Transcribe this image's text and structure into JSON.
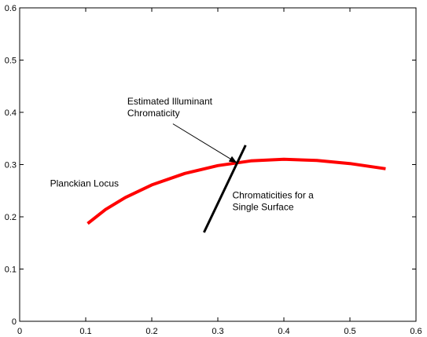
{
  "chart_data": {
    "type": "line",
    "title": "",
    "xlabel": "",
    "ylabel": "",
    "xlim": [
      0,
      0.6
    ],
    "ylim": [
      0,
      0.6
    ],
    "grid": false,
    "x_ticks": [
      0,
      0.1,
      0.2,
      0.3,
      0.4,
      0.5,
      0.6
    ],
    "y_ticks": [
      0,
      0.1,
      0.2,
      0.3,
      0.4,
      0.5,
      0.6
    ],
    "x_tick_labels": [
      "0",
      "0.1",
      "0.2",
      "0.3",
      "0.4",
      "0.5",
      "0.6"
    ],
    "y_tick_labels": [
      "0",
      "0.1",
      "0.2",
      "0.3",
      "0.4",
      "0.5",
      "0.6"
    ],
    "series": [
      {
        "name": "Planckian Locus",
        "color": "#ff0000",
        "x": [
          0.103,
          0.13,
          0.16,
          0.2,
          0.25,
          0.3,
          0.35,
          0.4,
          0.45,
          0.5,
          0.554
        ],
        "y": [
          0.187,
          0.214,
          0.237,
          0.261,
          0.283,
          0.298,
          0.307,
          0.31,
          0.308,
          0.302,
          0.292
        ]
      },
      {
        "name": "Chromaticities for a Single Surface",
        "color": "#000000",
        "x": [
          0.279,
          0.342
        ],
        "y": [
          0.17,
          0.337
        ]
      }
    ],
    "annotations": [
      {
        "id": "planckian",
        "lines": [
          "Planckian Locus"
        ],
        "x": 0.046,
        "y": 0.258
      },
      {
        "id": "surface",
        "lines": [
          "Chromaticities for a",
          "Single Surface"
        ],
        "x": 0.322,
        "y": 0.235
      },
      {
        "id": "illuminant",
        "lines": [
          "Estimated Illuminant",
          "Chromaticity"
        ],
        "x": 0.163,
        "y": 0.415,
        "arrow_from": [
          0.232,
          0.378
        ],
        "arrow_to": [
          0.328,
          0.304
        ]
      }
    ]
  }
}
